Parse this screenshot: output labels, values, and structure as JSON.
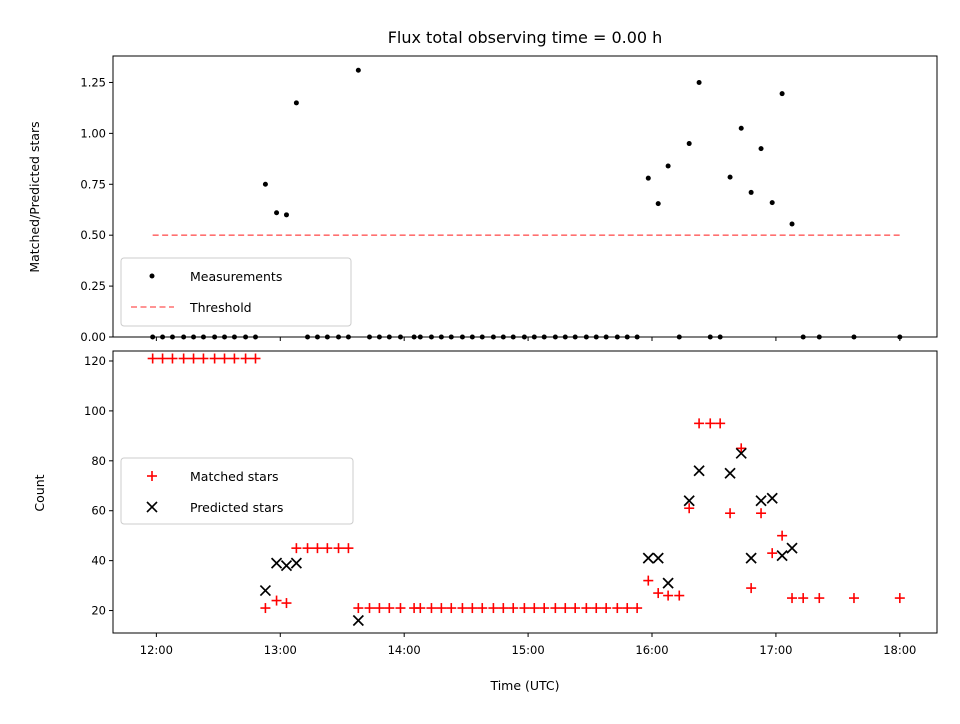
{
  "chart_data": [
    {
      "type": "scatter",
      "title": "Flux total observing time = 0.00 h",
      "xlabel": "",
      "ylabel": "Matched/Predicted stars",
      "ylim": [
        0,
        1.38
      ],
      "yticks": [
        "0.00",
        "0.25",
        "0.50",
        "0.75",
        "1.00",
        "1.25"
      ],
      "ytick_values": [
        0,
        0.25,
        0.5,
        0.75,
        1.0,
        1.25
      ],
      "xlim_hours": [
        11.65,
        18.3
      ],
      "legend_position": "lower-left",
      "legend": [
        "Measurements",
        "Threshold"
      ],
      "series": [
        {
          "name": "Measurements",
          "marker": "dot",
          "color": "#000000",
          "points": [
            [
              11.97,
              0
            ],
            [
              12.05,
              0
            ],
            [
              12.13,
              0
            ],
            [
              12.22,
              0
            ],
            [
              12.3,
              0
            ],
            [
              12.38,
              0
            ],
            [
              12.47,
              0
            ],
            [
              12.55,
              0
            ],
            [
              12.63,
              0
            ],
            [
              12.72,
              0
            ],
            [
              12.8,
              0
            ],
            [
              12.88,
              0.75
            ],
            [
              12.97,
              0.61
            ],
            [
              13.05,
              0.6
            ],
            [
              13.13,
              1.15
            ],
            [
              13.22,
              0
            ],
            [
              13.3,
              0
            ],
            [
              13.38,
              0
            ],
            [
              13.47,
              0
            ],
            [
              13.55,
              0
            ],
            [
              13.63,
              1.31
            ],
            [
              13.72,
              0
            ],
            [
              13.8,
              0
            ],
            [
              13.88,
              0
            ],
            [
              13.97,
              0
            ],
            [
              14.08,
              0
            ],
            [
              14.13,
              0
            ],
            [
              14.22,
              0
            ],
            [
              14.3,
              0
            ],
            [
              14.38,
              0
            ],
            [
              14.47,
              0
            ],
            [
              14.55,
              0
            ],
            [
              14.63,
              0
            ],
            [
              14.72,
              0
            ],
            [
              14.8,
              0
            ],
            [
              14.88,
              0
            ],
            [
              14.97,
              0
            ],
            [
              15.05,
              0
            ],
            [
              15.13,
              0
            ],
            [
              15.22,
              0
            ],
            [
              15.3,
              0
            ],
            [
              15.38,
              0
            ],
            [
              15.47,
              0
            ],
            [
              15.55,
              0
            ],
            [
              15.63,
              0
            ],
            [
              15.72,
              0
            ],
            [
              15.8,
              0
            ],
            [
              15.88,
              0
            ],
            [
              15.97,
              0.78
            ],
            [
              16.05,
              0.655
            ],
            [
              16.13,
              0.84
            ],
            [
              16.22,
              0
            ],
            [
              16.3,
              0.95
            ],
            [
              16.38,
              1.25
            ],
            [
              16.47,
              0
            ],
            [
              16.55,
              0
            ],
            [
              16.63,
              0.785
            ],
            [
              16.72,
              1.025
            ],
            [
              16.8,
              0.71
            ],
            [
              16.88,
              0.925
            ],
            [
              16.97,
              0.66
            ],
            [
              17.05,
              1.195
            ],
            [
              17.13,
              0.555
            ],
            [
              17.22,
              0
            ],
            [
              17.35,
              0
            ],
            [
              17.63,
              0
            ],
            [
              18.0,
              0
            ]
          ]
        },
        {
          "name": "Threshold",
          "style": "dashed",
          "color": "#ff7070",
          "points": [
            [
              11.97,
              0.5
            ],
            [
              18.0,
              0.5
            ]
          ]
        }
      ]
    },
    {
      "type": "scatter",
      "title": "",
      "xlabel": "Time (UTC)",
      "ylabel": "Count",
      "ylim": [
        11,
        124
      ],
      "yticks": [
        "20",
        "40",
        "60",
        "80",
        "100",
        "120"
      ],
      "ytick_values": [
        20,
        40,
        60,
        80,
        100,
        120
      ],
      "xlim_hours": [
        11.65,
        18.3
      ],
      "xticks": [
        "12:00",
        "13:00",
        "14:00",
        "15:00",
        "16:00",
        "17:00",
        "18:00"
      ],
      "xtick_values": [
        12,
        13,
        14,
        15,
        16,
        17,
        18
      ],
      "legend_position": "center-left",
      "legend": [
        "Matched stars",
        "Predicted stars"
      ],
      "series": [
        {
          "name": "Matched stars",
          "marker": "plus",
          "color": "#ff0000",
          "points": [
            [
              11.97,
              121
            ],
            [
              12.05,
              121
            ],
            [
              12.13,
              121
            ],
            [
              12.22,
              121
            ],
            [
              12.3,
              121
            ],
            [
              12.38,
              121
            ],
            [
              12.47,
              121
            ],
            [
              12.55,
              121
            ],
            [
              12.63,
              121
            ],
            [
              12.72,
              121
            ],
            [
              12.8,
              121
            ],
            [
              12.88,
              21
            ],
            [
              12.97,
              24
            ],
            [
              13.05,
              23
            ],
            [
              13.13,
              45
            ],
            [
              13.22,
              45
            ],
            [
              13.3,
              45
            ],
            [
              13.38,
              45
            ],
            [
              13.47,
              45
            ],
            [
              13.55,
              45
            ],
            [
              13.63,
              21
            ],
            [
              13.72,
              21
            ],
            [
              13.8,
              21
            ],
            [
              13.88,
              21
            ],
            [
              13.97,
              21
            ],
            [
              14.08,
              21
            ],
            [
              14.13,
              21
            ],
            [
              14.22,
              21
            ],
            [
              14.3,
              21
            ],
            [
              14.38,
              21
            ],
            [
              14.47,
              21
            ],
            [
              14.55,
              21
            ],
            [
              14.63,
              21
            ],
            [
              14.72,
              21
            ],
            [
              14.8,
              21
            ],
            [
              14.88,
              21
            ],
            [
              14.97,
              21
            ],
            [
              15.05,
              21
            ],
            [
              15.13,
              21
            ],
            [
              15.22,
              21
            ],
            [
              15.3,
              21
            ],
            [
              15.38,
              21
            ],
            [
              15.47,
              21
            ],
            [
              15.55,
              21
            ],
            [
              15.63,
              21
            ],
            [
              15.72,
              21
            ],
            [
              15.8,
              21
            ],
            [
              15.88,
              21
            ],
            [
              15.97,
              32
            ],
            [
              16.05,
              27
            ],
            [
              16.13,
              26
            ],
            [
              16.22,
              26
            ],
            [
              16.3,
              61
            ],
            [
              16.38,
              95
            ],
            [
              16.47,
              95
            ],
            [
              16.55,
              95
            ],
            [
              16.63,
              59
            ],
            [
              16.72,
              85
            ],
            [
              16.8,
              29
            ],
            [
              16.88,
              59
            ],
            [
              16.97,
              43
            ],
            [
              17.05,
              50
            ],
            [
              17.13,
              25
            ],
            [
              17.22,
              25
            ],
            [
              17.35,
              25
            ],
            [
              17.63,
              25
            ],
            [
              18.0,
              25
            ]
          ]
        },
        {
          "name": "Predicted stars",
          "marker": "x",
          "color": "#000000",
          "points": [
            [
              12.88,
              28
            ],
            [
              12.97,
              39
            ],
            [
              13.05,
              38
            ],
            [
              13.13,
              39
            ],
            [
              13.63,
              16
            ],
            [
              15.97,
              41
            ],
            [
              16.05,
              41
            ],
            [
              16.13,
              31
            ],
            [
              16.3,
              64
            ],
            [
              16.38,
              76
            ],
            [
              16.63,
              75
            ],
            [
              16.72,
              83
            ],
            [
              16.8,
              41
            ],
            [
              16.88,
              64
            ],
            [
              16.97,
              65
            ],
            [
              17.05,
              42
            ],
            [
              17.13,
              45
            ]
          ]
        }
      ]
    }
  ]
}
